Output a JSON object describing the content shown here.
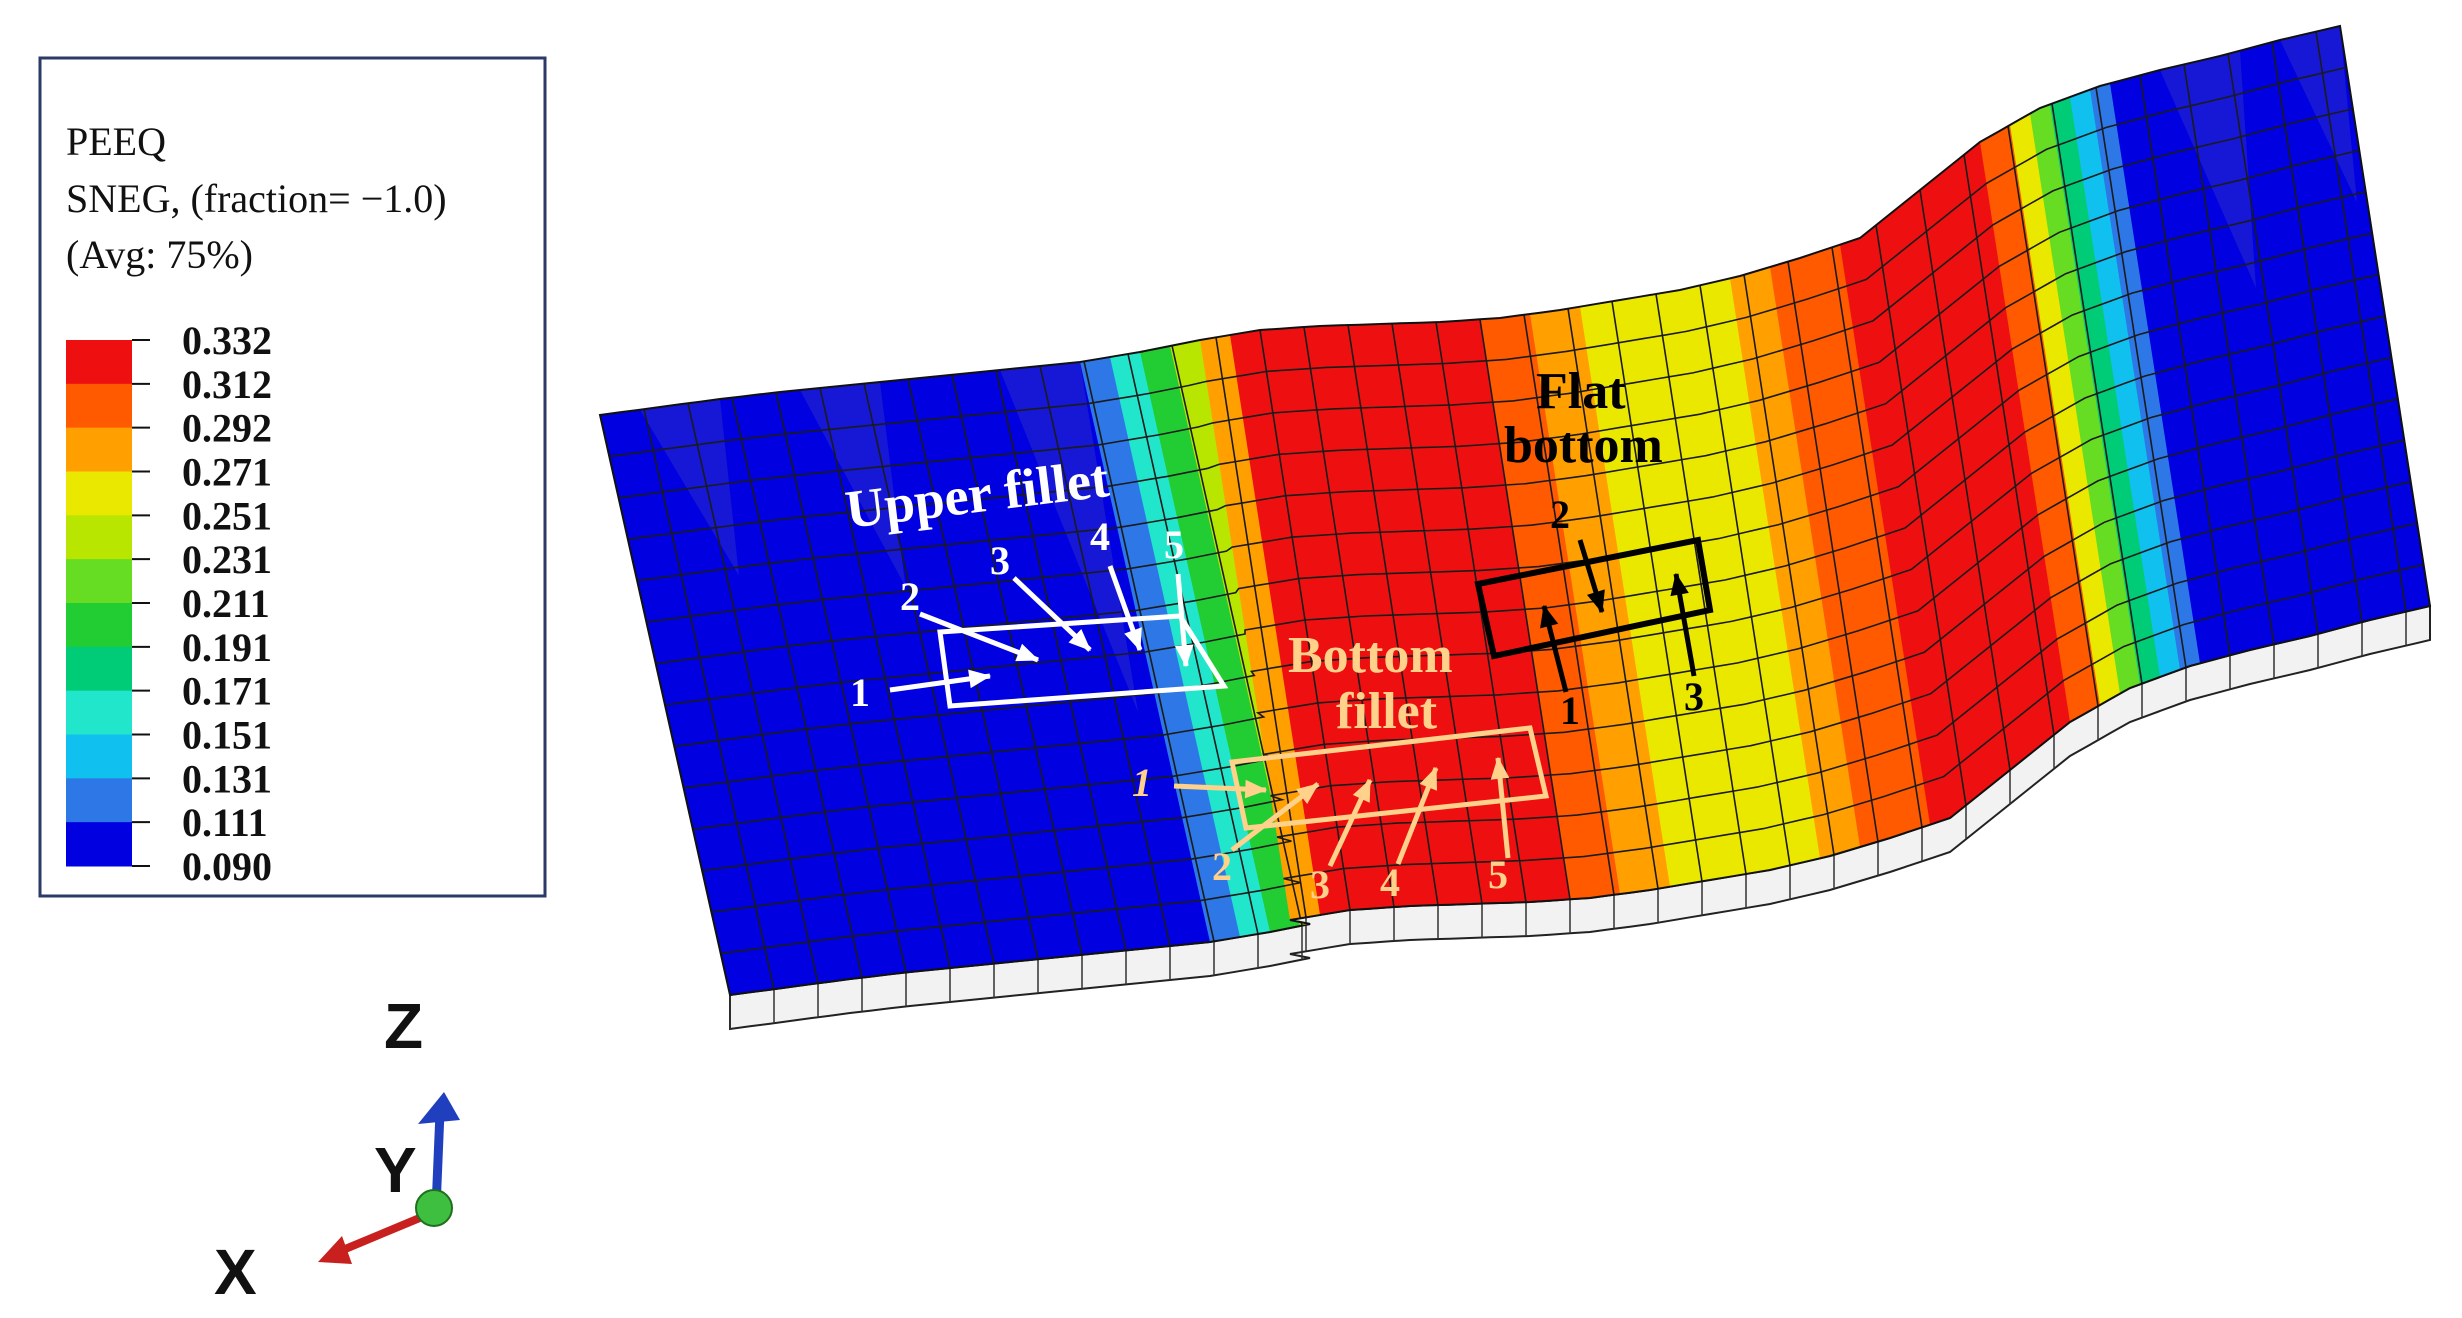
{
  "legend": {
    "title_lines": [
      "PEEQ",
      "SNEG, (fraction= −1.0)",
      "(Avg: 75%)"
    ],
    "ticks": [
      "0.332",
      "0.312",
      "0.292",
      "0.271",
      "0.251",
      "0.231",
      "0.211",
      "0.191",
      "0.171",
      "0.151",
      "0.131",
      "0.111",
      "0.090"
    ],
    "colors": [
      "#ee1010",
      "#ff5a00",
      "#ffa000",
      "#ebe800",
      "#b8e600",
      "#66dd22",
      "#22cc33",
      "#00cc77",
      "#22e6cc",
      "#10c0ee",
      "#2d78e6",
      "#0000e0"
    ]
  },
  "regions": {
    "upper_fillet": {
      "label": "Upper fillet",
      "points": [
        "1",
        "2",
        "3",
        "4",
        "5"
      ],
      "color": "#ffffff"
    },
    "bottom_fillet": {
      "label_lines": [
        "Bottom",
        "fillet"
      ],
      "points": [
        "1",
        "2",
        "3",
        "4",
        "5"
      ],
      "color": "#ffd18a"
    },
    "flat_bottom": {
      "label_lines": [
        "Flat",
        "bottom"
      ],
      "points": [
        "1",
        "2",
        "3"
      ],
      "color": "#000000"
    }
  },
  "triad": {
    "z_label": "Z",
    "y_label": "Y",
    "x_label": "X",
    "z_color": "#1f3fbf",
    "x_color": "#c8201e",
    "origin_color": "#3fbf3f"
  }
}
